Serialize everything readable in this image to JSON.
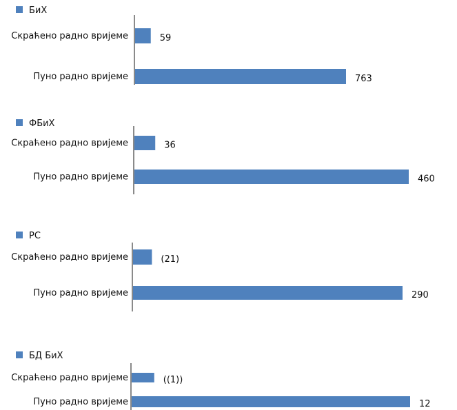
{
  "chart_data": [
    {
      "type": "bar",
      "orientation": "horizontal",
      "legend": "БиХ",
      "legend_position": "top-left",
      "categories": [
        "Скраћено радно вријеме",
        "Пуно радно вријеме"
      ],
      "values": [
        59,
        763
      ],
      "value_labels": [
        "59",
        "763"
      ],
      "color": "#4F81BD",
      "grid": false
    },
    {
      "type": "bar",
      "orientation": "horizontal",
      "legend": "ФБиХ",
      "legend_position": "top-left",
      "categories": [
        "Скраћено радно вријеме",
        "Пуно радно вријеме"
      ],
      "values": [
        36,
        460
      ],
      "value_labels": [
        "36",
        "460"
      ],
      "color": "#4F81BD",
      "grid": false
    },
    {
      "type": "bar",
      "orientation": "horizontal",
      "legend": "РС",
      "legend_position": "top-left",
      "categories": [
        "Скраћено радно вријеме",
        "Пуно радно вријеме"
      ],
      "values": [
        21,
        290
      ],
      "value_labels": [
        "(21)",
        "290"
      ],
      "color": "#4F81BD",
      "grid": false
    },
    {
      "type": "bar",
      "orientation": "horizontal",
      "legend": "БД БиХ",
      "legend_position": "top-left",
      "categories": [
        "Скраћено радно вријеме",
        "Пуно радно вријеме"
      ],
      "values": [
        1,
        12
      ],
      "value_labels": [
        "((1))",
        "12"
      ],
      "color": "#4F81BD",
      "grid": false
    }
  ]
}
